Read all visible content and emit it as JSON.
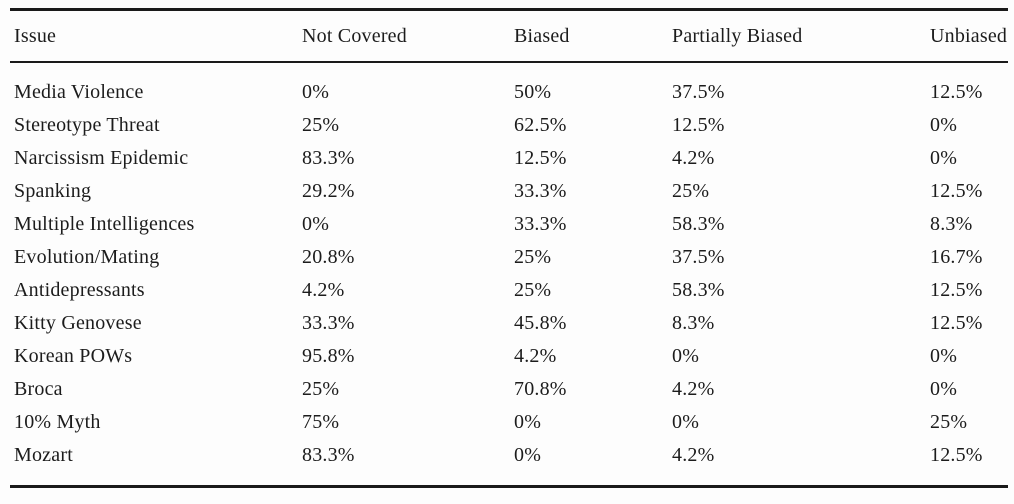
{
  "table": {
    "columns": [
      "Issue",
      "Not Covered",
      "Biased",
      "Partially Biased",
      "Unbiased"
    ],
    "rows": [
      {
        "issue": "Media Violence",
        "values": [
          "0%",
          "50%",
          "37.5%",
          "12.5%"
        ]
      },
      {
        "issue": "Stereotype Threat",
        "values": [
          "25%",
          "62.5%",
          "12.5%",
          "0%"
        ]
      },
      {
        "issue": "Narcissism Epidemic",
        "values": [
          "83.3%",
          "12.5%",
          "4.2%",
          "0%"
        ]
      },
      {
        "issue": "Spanking",
        "values": [
          "29.2%",
          "33.3%",
          "25%",
          "12.5%"
        ]
      },
      {
        "issue": "Multiple Intelligences",
        "values": [
          "0%",
          "33.3%",
          "58.3%",
          "8.3%"
        ]
      },
      {
        "issue": "Evolution/Mating",
        "values": [
          "20.8%",
          "25%",
          "37.5%",
          "16.7%"
        ]
      },
      {
        "issue": "Antidepressants",
        "values": [
          "4.2%",
          "25%",
          "58.3%",
          "12.5%"
        ]
      },
      {
        "issue": "Kitty Genovese",
        "values": [
          "33.3%",
          "45.8%",
          "8.3%",
          "12.5%"
        ]
      },
      {
        "issue": "Korean POWs",
        "values": [
          "95.8%",
          "4.2%",
          "0%",
          "0%"
        ]
      },
      {
        "issue": "Broca",
        "values": [
          "25%",
          "70.8%",
          "4.2%",
          "0%"
        ]
      },
      {
        "issue": "10% Myth",
        "values": [
          "75%",
          "0%",
          "0%",
          "25%"
        ]
      },
      {
        "issue": "Mozart",
        "values": [
          "83.3%",
          "0%",
          "4.2%",
          "12.5%"
        ]
      }
    ],
    "colors": {
      "text": "#1c1c1c",
      "rule": "#1a1a1a",
      "background": "#fdfdfd"
    }
  },
  "chart_data": {
    "type": "table",
    "title": "",
    "categories": [
      "Media Violence",
      "Stereotype Threat",
      "Narcissism Epidemic",
      "Spanking",
      "Multiple Intelligences",
      "Evolution/Mating",
      "Antidepressants",
      "Kitty Genovese",
      "Korean POWs",
      "Broca",
      "10% Myth",
      "Mozart"
    ],
    "series": [
      {
        "name": "Not Covered",
        "values": [
          0,
          25,
          83.3,
          29.2,
          0,
          20.8,
          4.2,
          33.3,
          95.8,
          25,
          75,
          83.3
        ]
      },
      {
        "name": "Biased",
        "values": [
          50,
          62.5,
          12.5,
          33.3,
          33.3,
          25,
          25,
          45.8,
          4.2,
          70.8,
          0,
          0
        ]
      },
      {
        "name": "Partially Biased",
        "values": [
          37.5,
          12.5,
          4.2,
          25,
          58.3,
          37.5,
          58.3,
          8.3,
          0,
          4.2,
          0,
          4.2
        ]
      },
      {
        "name": "Unbiased",
        "values": [
          12.5,
          0,
          0,
          12.5,
          8.3,
          16.7,
          12.5,
          12.5,
          0,
          0,
          25,
          12.5
        ]
      }
    ],
    "unit": "percent"
  }
}
